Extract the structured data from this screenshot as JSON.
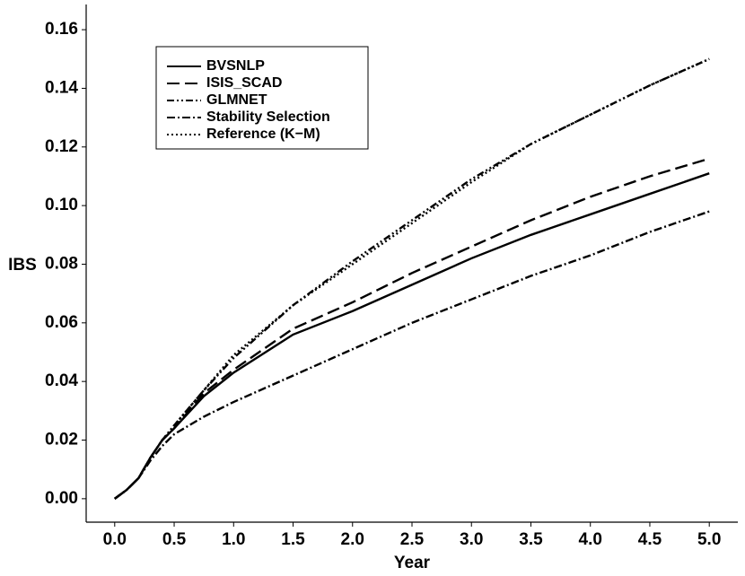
{
  "chart_data": {
    "type": "line",
    "x_label": "Year",
    "y_label": "IBS",
    "x": [
      0,
      0.1,
      0.2,
      0.3,
      0.4,
      0.5,
      0.75,
      1.0,
      1.5,
      2.0,
      2.5,
      3.0,
      3.5,
      4.0,
      4.5,
      5.0
    ],
    "series": [
      {
        "name": "BVSNLP",
        "color": "#000000",
        "dash": "none",
        "values": [
          0,
          0.003,
          0.007,
          0.014,
          0.02,
          0.024,
          0.035,
          0.043,
          0.056,
          0.064,
          0.073,
          0.082,
          0.09,
          0.097,
          0.104,
          0.111
        ]
      },
      {
        "name": "ISIS_SCAD",
        "color": "#000000",
        "dash": "14 6",
        "values": [
          0,
          0.003,
          0.007,
          0.014,
          0.02,
          0.024,
          0.036,
          0.044,
          0.058,
          0.067,
          0.077,
          0.086,
          0.095,
          0.103,
          0.11,
          0.116
        ]
      },
      {
        "name": "GLMNET",
        "color": "#000000",
        "dash": "8 3 2 3 2 3",
        "values": [
          0,
          0.003,
          0.007,
          0.014,
          0.02,
          0.025,
          0.037,
          0.048,
          0.066,
          0.081,
          0.095,
          0.109,
          0.121,
          0.131,
          0.141,
          0.15
        ]
      },
      {
        "name": "Stability Selection",
        "color": "#000000",
        "dash": "9 3 2 3",
        "values": [
          0,
          0.003,
          0.007,
          0.013,
          0.018,
          0.022,
          0.028,
          0.033,
          0.042,
          0.051,
          0.06,
          0.068,
          0.076,
          0.083,
          0.091,
          0.098
        ]
      },
      {
        "name": "Reference (K−M)",
        "color": "#000000",
        "dash": "2 3",
        "values": [
          0,
          0.003,
          0.007,
          0.014,
          0.02,
          0.025,
          0.037,
          0.049,
          0.066,
          0.08,
          0.094,
          0.108,
          0.121,
          0.131,
          0.141,
          0.15
        ]
      }
    ],
    "xlim": [
      -0.24,
      5.24
    ],
    "ylim": [
      -0.008,
      0.1686
    ],
    "xticks": [
      {
        "value": 0,
        "label": "0.0"
      },
      0.5,
      {
        "value": 1,
        "label": "1.0"
      },
      1.5,
      {
        "value": 2,
        "label": "2.0"
      },
      2.5,
      {
        "value": 3,
        "label": "3.0"
      },
      3.5,
      {
        "value": 4,
        "label": "4.0"
      },
      4.5,
      {
        "value": 5,
        "label": "5.0"
      }
    ],
    "yticks": [
      {
        "value": 0,
        "label": "0.00"
      },
      0.02,
      0.04,
      0.06,
      0.08,
      {
        "value": 0.1,
        "label": "0.10"
      },
      0.12,
      0.14,
      0.16
    ],
    "grid": false,
    "legend": "top-left"
  }
}
